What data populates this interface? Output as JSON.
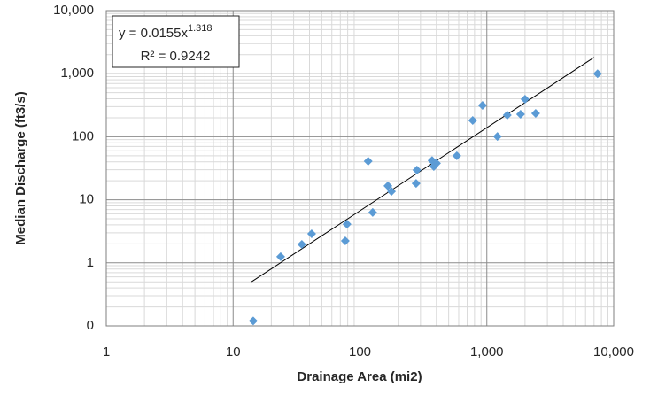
{
  "chart_data": {
    "type": "scatter",
    "x_label": "Drainage Area (mi2)",
    "y_label": "Median Discharge (ft3/s)",
    "log_x": true,
    "log_y": true,
    "grid": true,
    "minor_grid": true,
    "xlim": [
      1,
      10000
    ],
    "xticks": [
      1,
      10,
      100,
      {
        "value": 1000,
        "label": "1,000"
      },
      {
        "value": 10000,
        "label": "10,000"
      }
    ],
    "ylim": [
      0.1,
      10000
    ],
    "yticks": [
      {
        "value": 0.1,
        "label": "0"
      },
      1,
      10,
      100,
      {
        "value": 1000,
        "label": "1,000"
      },
      {
        "value": 10000,
        "label": "10,000"
      }
    ],
    "series": [
      {
        "color": "#5b9bd5",
        "x": [
          14.4,
          23.7,
          34.8,
          41.6,
          76.6,
          79,
          116,
          126,
          166,
          177,
          277,
          281,
          370,
          382,
          401,
          580,
          774,
          925,
          1213,
          1449,
          1845,
          2000,
          2427,
          7464
        ],
        "values": [
          0.12,
          1.25,
          1.96,
          2.89,
          2.23,
          4.1,
          41,
          6.3,
          16.6,
          13.6,
          18.2,
          29.6,
          42,
          33.7,
          38,
          50,
          181,
          314,
          101,
          220,
          227,
          394,
          235,
          1000
        ]
      }
    ],
    "trendline": {
      "coefficient": 0.0155,
      "exponent": 1.318,
      "x": [
        14,
        7000
      ],
      "color": "#000000",
      "equation_label": "y = 0.0155x",
      "exponent_label": "1.318",
      "r2_label": "R² = 0.9242"
    }
  }
}
